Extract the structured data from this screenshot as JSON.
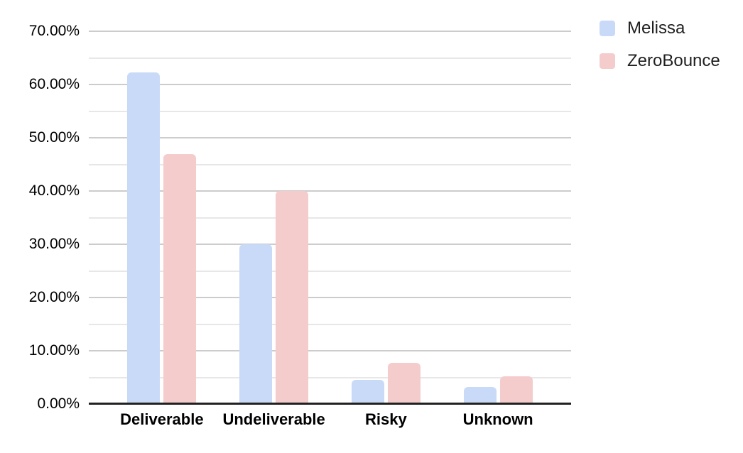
{
  "chart_data": {
    "type": "bar",
    "title": "",
    "categories": [
      "Deliverable",
      "Undeliverable",
      "Risky",
      "Unknown"
    ],
    "series": [
      {
        "name": "Melissa",
        "color": "#c9daf8",
        "values": [
          62.3,
          30.0,
          4.5,
          3.2
        ]
      },
      {
        "name": "ZeroBounce",
        "color": "#f4cccc",
        "values": [
          46.9,
          40.0,
          7.7,
          5.2
        ]
      }
    ],
    "xlabel": "",
    "ylabel": "",
    "ylim": [
      0,
      70
    ],
    "y_major_step": 10,
    "y_minor_step": 5,
    "y_ticks": [
      "70.00%",
      "60.00%",
      "50.00%",
      "40.00%",
      "30.00%",
      "20.00%",
      "10.00%",
      "0.00%"
    ],
    "value_format": "percent",
    "grid": true,
    "legend_position": "top-right"
  },
  "legend": {
    "items": [
      {
        "label": "Melissa",
        "color": "#c9daf8"
      },
      {
        "label": "ZeroBounce",
        "color": "#f4cccc"
      }
    ]
  },
  "colors": {
    "background": "#ffffff",
    "major_gridline": "#cccccc",
    "minor_gridline": "#e7e7e7",
    "axis_line": "#212121",
    "axis_text": "#000000",
    "legend_text": "#1f1f1f"
  }
}
